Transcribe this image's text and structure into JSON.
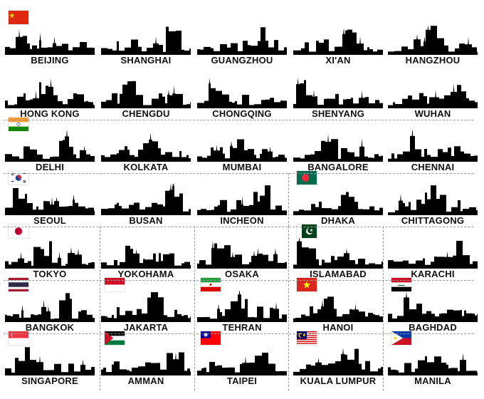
{
  "cities": [
    "BEIJING",
    "SHANGHAI",
    "GUANGZHOU",
    "XI'AN",
    "HANGZHOU",
    "HONG KONG",
    "CHENGDU",
    "CHONGQING",
    "SHENYANG",
    "WUHAN",
    "DELHI",
    "KOLKATA",
    "MUMBAI",
    "BANGALORE",
    "CHENNAI",
    "SEOUL",
    "BUSAN",
    "INCHEON",
    "DHAKA",
    "CHITTAGONG",
    "TOKYO",
    "YOKOHAMA",
    "OSAKA",
    "ISLAMABAD",
    "KARACHI",
    "BANGKOK",
    "JAKARTA",
    "TEHRAN",
    "HANOI",
    "BAGHDAD",
    "SINGAPORE",
    "AMMAN",
    "TAIPEI",
    "KUALA LUMPUR",
    "MANILA"
  ],
  "flags": [
    {
      "icon": "china-flag-icon",
      "cell": 0
    },
    {
      "icon": "india-flag-icon",
      "cell": 10
    },
    {
      "icon": "south-korea-flag-icon",
      "cell": 15
    },
    {
      "icon": "bangladesh-flag-icon",
      "cell": 18
    },
    {
      "icon": "japan-flag-icon",
      "cell": 20
    },
    {
      "icon": "pakistan-flag-icon",
      "cell": 23
    },
    {
      "icon": "thailand-flag-icon",
      "cell": 25
    },
    {
      "icon": "indonesia-flag-icon",
      "cell": 26
    },
    {
      "icon": "iran-flag-icon",
      "cell": 27
    },
    {
      "icon": "vietnam-flag-icon",
      "cell": 28
    },
    {
      "icon": "iraq-flag-icon",
      "cell": 29
    },
    {
      "icon": "singapore-flag-icon",
      "cell": 30
    },
    {
      "icon": "jordan-flag-icon",
      "cell": 31
    },
    {
      "icon": "taiwan-flag-icon",
      "cell": 32
    },
    {
      "icon": "malaysia-flag-icon",
      "cell": 33
    },
    {
      "icon": "philippines-flag-icon",
      "cell": 34
    }
  ],
  "colors": {
    "silhouette": "#000000",
    "label": "#111111",
    "divider": "#9a9a9a"
  }
}
